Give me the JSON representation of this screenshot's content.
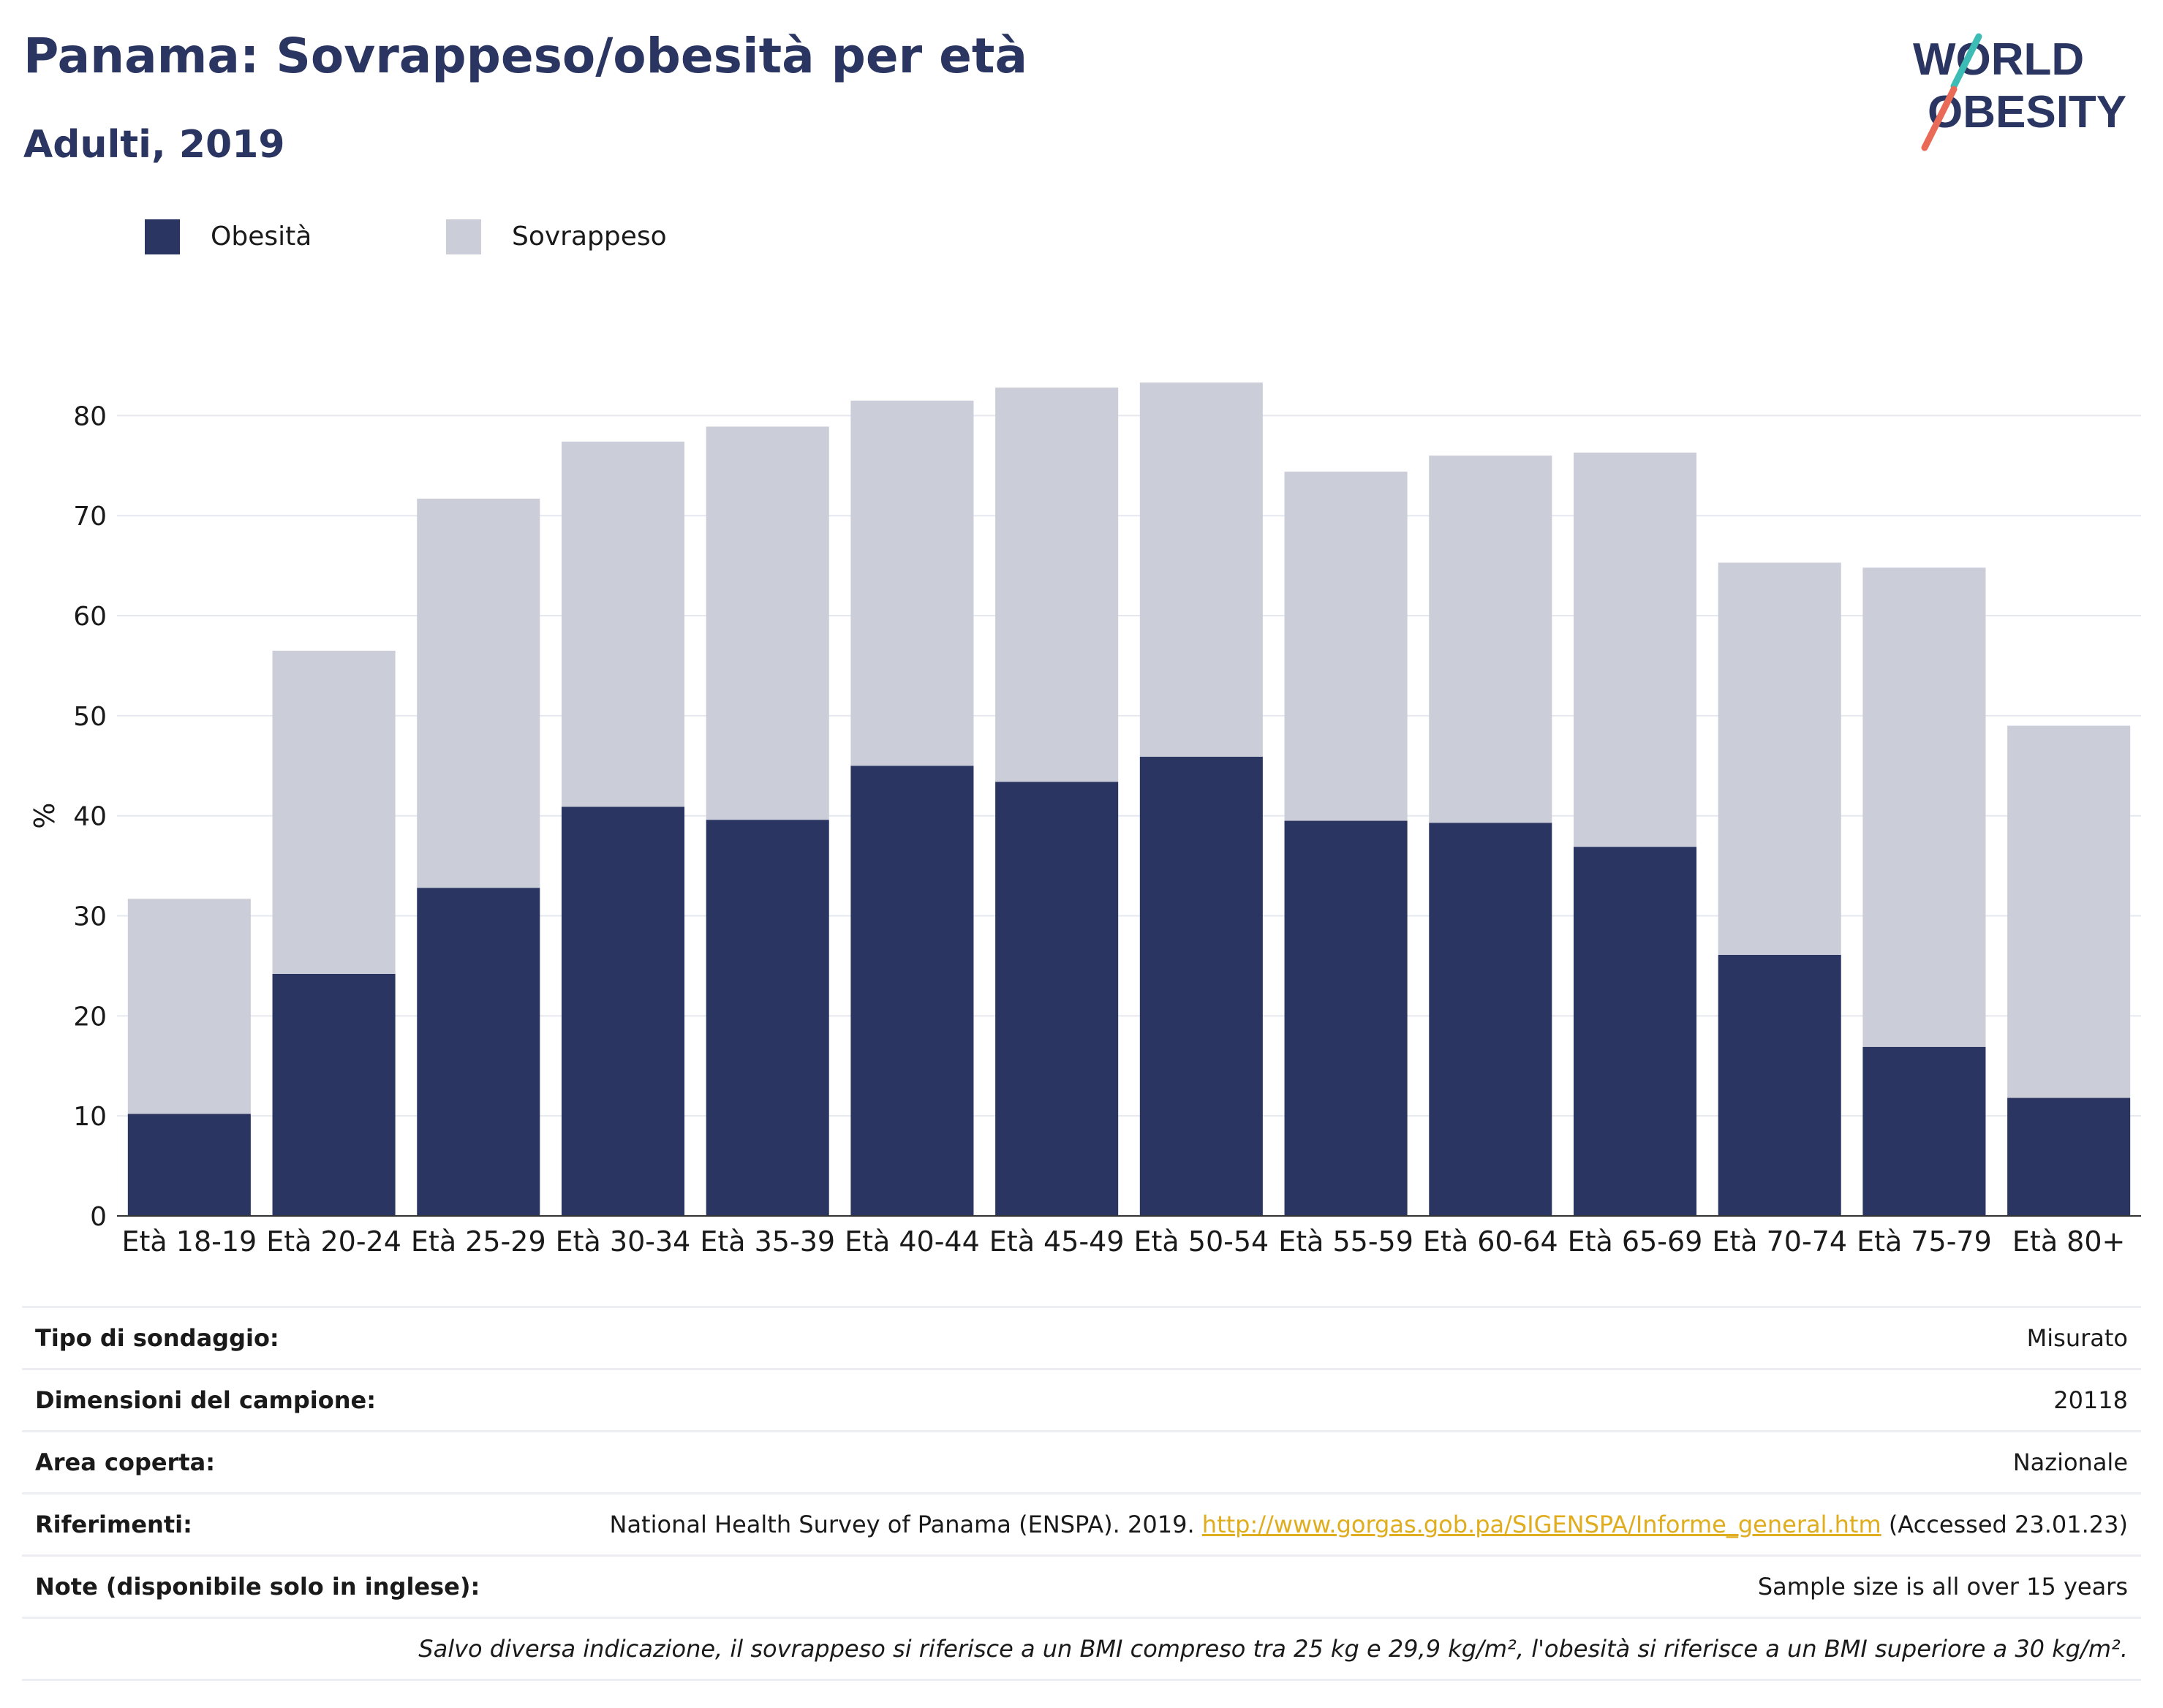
{
  "header": {
    "title": "Panama: Sovrappeso/obesità per età",
    "subtitle": "Adulti, 2019",
    "logo_line1": "WORLD",
    "logo_line2": "OBESITY"
  },
  "legend": {
    "position": "top-left",
    "items": [
      {
        "label": "Obesità",
        "color": "#2a3561"
      },
      {
        "label": "Sovrappeso",
        "color": "#cbcdd8"
      }
    ]
  },
  "chart_data": {
    "type": "bar",
    "stacked": true,
    "title": "Panama: Sovrappeso/obesità per età",
    "subtitle": "Adulti, 2019",
    "xlabel": "",
    "ylabel": "%",
    "ylim": [
      0,
      85
    ],
    "yticks": [
      0,
      10,
      20,
      30,
      40,
      50,
      60,
      70,
      80
    ],
    "grid": true,
    "categories": [
      "Età 18-19",
      "Età 20-24",
      "Età 25-29",
      "Età 30-34",
      "Età 35-39",
      "Età 40-44",
      "Età 45-49",
      "Età 50-54",
      "Età 55-59",
      "Età 60-64",
      "Età 65-69",
      "Età 70-74",
      "Età 75-79",
      "Età 80+"
    ],
    "series": [
      {
        "name": "Obesità",
        "color": "#2a3561",
        "values": [
          10.2,
          24.2,
          32.8,
          40.9,
          39.6,
          45.0,
          43.4,
          45.9,
          39.5,
          39.3,
          36.9,
          26.1,
          16.9,
          11.8
        ]
      },
      {
        "name": "Sovrappeso",
        "color": "#cbcdd8",
        "values": [
          21.5,
          32.3,
          38.9,
          36.5,
          39.3,
          36.5,
          39.4,
          37.4,
          34.9,
          36.7,
          39.4,
          39.2,
          47.9,
          37.2
        ]
      }
    ]
  },
  "meta": {
    "rows": [
      {
        "label": "Tipo di sondaggio:",
        "value": "Misurato"
      },
      {
        "label": "Dimensioni del campione:",
        "value": "20118"
      },
      {
        "label": "Area coperta:",
        "value": "Nazionale"
      },
      {
        "label": "Riferimenti:",
        "value_pre": "National Health Survey of Panama (ENSPA). 2019. ",
        "link": "http://www.gorgas.gob.pa/SIGENSPA/Informe_general.htm",
        "value_post": " (Accessed 23.01.23)"
      },
      {
        "label": "Note (disponibile solo in inglese):",
        "value": "Sample size is all over 15 years"
      }
    ],
    "footnote": "Salvo diversa indicazione, il sovrappeso si riferisce a un BMI compreso tra 25 kg e 29,9 kg/m², l'obesità si riferisce a un BMI superiore a 30 kg/m²."
  }
}
